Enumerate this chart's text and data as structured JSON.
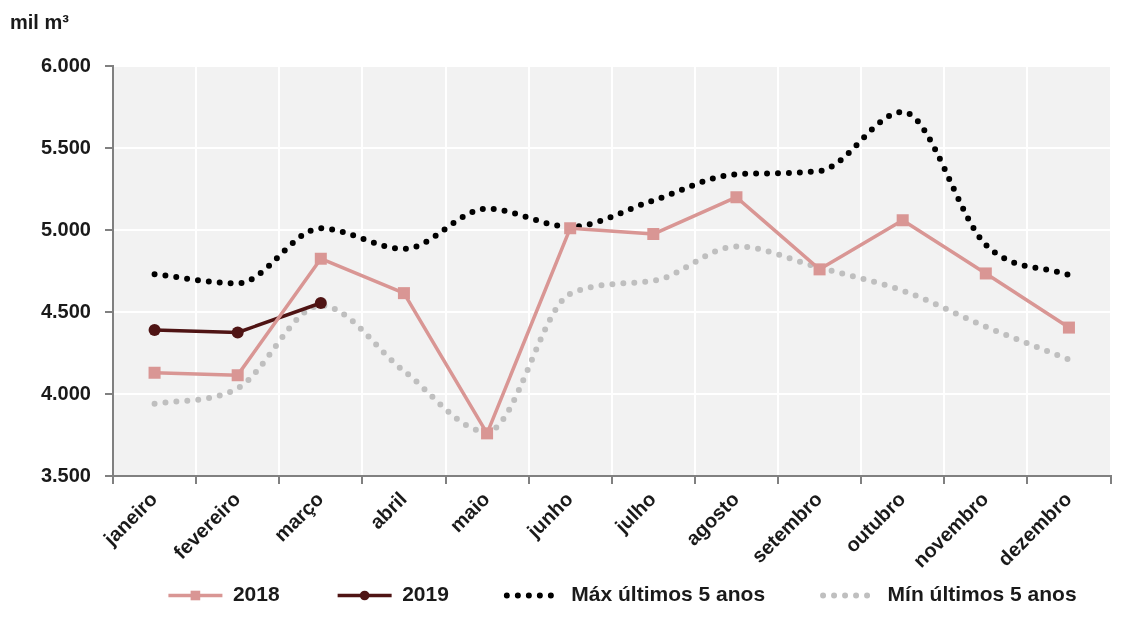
{
  "chart_data": {
    "type": "line",
    "ylabel": "mil m³",
    "categories": [
      "janeiro",
      "fevereiro",
      "março",
      "abril",
      "maio",
      "junho",
      "julho",
      "agosto",
      "setembro",
      "outubro",
      "novembro",
      "dezembro"
    ],
    "series": [
      {
        "name": "2018",
        "color": "#d99694",
        "marker": "square",
        "line_style": "solid",
        "values": [
          4130,
          4115,
          4825,
          4615,
          3760,
          5010,
          4975,
          5200,
          4760,
          5060,
          4735,
          4405
        ]
      },
      {
        "name": "2019",
        "color": "#4f1414",
        "marker": "circle",
        "line_style": "solid",
        "values": [
          4390,
          4375,
          4555,
          null,
          null,
          null,
          null,
          null,
          null,
          null,
          null,
          null
        ]
      },
      {
        "name": "Máx últimos 5 anos",
        "color": "#000000",
        "marker": "none",
        "line_style": "dotted",
        "values": [
          4730,
          4675,
          5010,
          4885,
          5130,
          5020,
          5180,
          5340,
          5360,
          5720,
          4910,
          4725
        ]
      },
      {
        "name": "Mín últimos 5 anos",
        "color": "#bfbfbf",
        "marker": "none",
        "line_style": "dotted",
        "values": [
          3940,
          4035,
          4540,
          4140,
          3770,
          4610,
          4690,
          4900,
          4770,
          4630,
          4410,
          4210
        ]
      }
    ],
    "ylim": [
      3500,
      6000
    ],
    "yticks": [
      {
        "value": 3500,
        "label": "3.500"
      },
      {
        "value": 4000,
        "label": "4.000"
      },
      {
        "value": 4500,
        "label": "4.500"
      },
      {
        "value": 5000,
        "label": "5.000"
      },
      {
        "value": 5500,
        "label": "5.500"
      },
      {
        "value": 6000,
        "label": "6.000"
      }
    ],
    "grid": true,
    "legend": "bottom"
  }
}
